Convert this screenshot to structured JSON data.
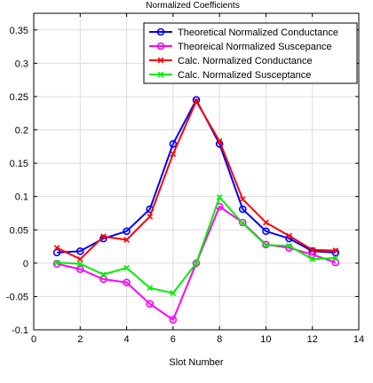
{
  "chart_data": {
    "type": "line",
    "title": "Normalized Coefficients",
    "xlabel": "Slot Number",
    "ylabel": "",
    "xlim": [
      0,
      14
    ],
    "ylim": [
      -0.1,
      0.375
    ],
    "xticks": [
      0,
      2,
      4,
      6,
      8,
      10,
      12,
      14
    ],
    "yticks": [
      -0.1,
      -0.05,
      0,
      0.05,
      0.1,
      0.15,
      0.2,
      0.25,
      0.3,
      0.35
    ],
    "ytick_labels": [
      "-0.1",
      "-0.05",
      "0",
      "0.05",
      "0.1",
      "0.15",
      "0.2",
      "0.25",
      "0.3",
      "0.35"
    ],
    "grid": true,
    "legend_position": "top-right",
    "x": [
      1,
      2,
      3,
      4,
      5,
      6,
      7,
      8,
      9,
      10,
      11,
      12,
      13
    ],
    "series": [
      {
        "name": "Theoretical Normalized Conductance",
        "color": "#0000ff",
        "marker": "circle",
        "values": [
          0.016,
          0.018,
          0.037,
          0.048,
          0.081,
          0.179,
          0.245,
          0.179,
          0.081,
          0.048,
          0.037,
          0.018,
          0.016
        ]
      },
      {
        "name": "Theoreical Normalized Suscepance",
        "color": "#ff00ff",
        "marker": "circle",
        "values": [
          -0.001,
          -0.009,
          -0.024,
          -0.029,
          -0.061,
          -0.085,
          0.0,
          0.085,
          0.061,
          0.028,
          0.023,
          0.013,
          0.001
        ]
      },
      {
        "name": "Calc. Normalized Conductance",
        "color": "#ff0000",
        "marker": "x",
        "values": [
          0.023,
          0.006,
          0.04,
          0.035,
          0.07,
          0.164,
          0.243,
          0.183,
          0.096,
          0.061,
          0.041,
          0.02,
          0.019
        ]
      },
      {
        "name": "Calc. Normalized Susceptance",
        "color": "#00ee00",
        "marker": "x",
        "values": [
          0.001,
          -0.001,
          -0.017,
          -0.007,
          -0.037,
          -0.045,
          0.0,
          0.099,
          0.06,
          0.027,
          0.026,
          0.006,
          0.008
        ]
      }
    ]
  }
}
